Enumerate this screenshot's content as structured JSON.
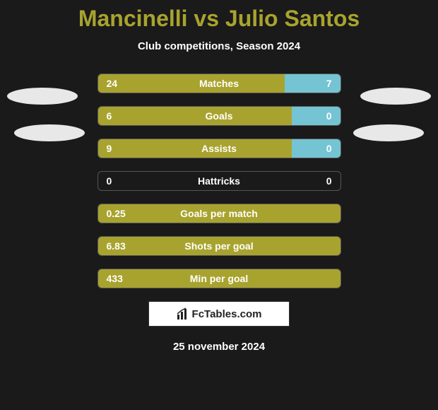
{
  "title": {
    "player1": "Mancinelli",
    "vs": "vs",
    "player2": "Julio Santos"
  },
  "subtitle": "Club competitions, Season 2024",
  "colors": {
    "left": "#a8a32e",
    "right": "#74c4d4",
    "background": "#1a1a1a",
    "text": "#ffffff"
  },
  "rows": [
    {
      "label": "Matches",
      "left": "24",
      "right": "7",
      "left_pct": 77,
      "right_pct": 23,
      "mode": "split"
    },
    {
      "label": "Goals",
      "left": "6",
      "right": "0",
      "left_pct": 80,
      "right_pct": 20,
      "mode": "split"
    },
    {
      "label": "Assists",
      "left": "9",
      "right": "0",
      "left_pct": 80,
      "right_pct": 20,
      "mode": "split"
    },
    {
      "label": "Hattricks",
      "left": "0",
      "right": "0",
      "left_pct": 0,
      "right_pct": 0,
      "mode": "empty"
    },
    {
      "label": "Goals per match",
      "left": "0.25",
      "right": "",
      "left_pct": 100,
      "right_pct": 0,
      "mode": "full"
    },
    {
      "label": "Shots per goal",
      "left": "6.83",
      "right": "",
      "left_pct": 100,
      "right_pct": 0,
      "mode": "full"
    },
    {
      "label": "Min per goal",
      "left": "433",
      "right": "",
      "left_pct": 100,
      "right_pct": 0,
      "mode": "full"
    }
  ],
  "branding": "FcTables.com",
  "date": "25 november 2024"
}
